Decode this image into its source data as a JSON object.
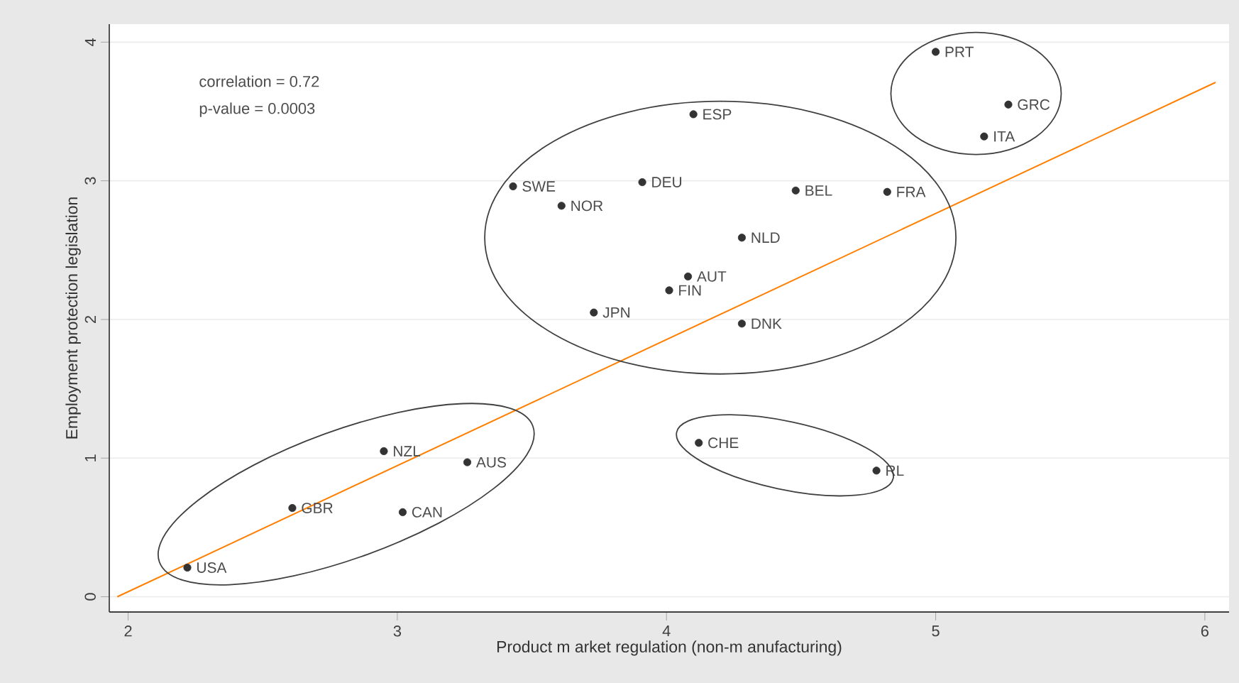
{
  "chart_data": {
    "type": "scatter",
    "xlabel": "Product m arket regulation (non-m anufacturing)",
    "ylabel": "Employment protection legislation",
    "xlim": [
      1.93,
      6.09
    ],
    "ylim": [
      -0.11,
      4.13
    ],
    "xticks": [
      2,
      3,
      4,
      5,
      6
    ],
    "yticks": [
      0,
      1,
      2,
      3,
      4
    ],
    "grid": "y",
    "marker": "circle",
    "series": [
      {
        "color": "#333333",
        "x": [
          5.0,
          5.27,
          5.18,
          4.1,
          3.43,
          3.91,
          4.48,
          4.82,
          3.61,
          4.28,
          4.08,
          4.01,
          3.73,
          4.28,
          4.12,
          4.78,
          2.95,
          3.26,
          2.61,
          3.02,
          2.22
        ],
        "values": [
          3.93,
          3.55,
          3.32,
          3.48,
          2.96,
          2.99,
          2.93,
          2.92,
          2.82,
          2.59,
          2.31,
          2.21,
          2.05,
          1.97,
          1.11,
          0.91,
          1.05,
          0.97,
          0.64,
          0.61,
          0.21
        ]
      },
      {
        "type": "line",
        "color": "#ff7f00",
        "marker": "none",
        "x": [
          1.96,
          6.04
        ],
        "values": [
          0,
          3.71
        ]
      }
    ],
    "annotations": [
      "correlation = 0.72",
      "p-value = 0.0003",
      {
        "text": "PRT",
        "x": 5.0,
        "y": 3.93
      },
      {
        "text": "GRC",
        "x": 5.27,
        "y": 3.55
      },
      {
        "text": "ITA",
        "x": 5.18,
        "y": 3.32
      },
      {
        "text": "ESP",
        "x": 4.1,
        "y": 3.48
      },
      {
        "text": "SWE",
        "x": 3.43,
        "y": 2.96
      },
      {
        "text": "DEU",
        "x": 3.91,
        "y": 2.99
      },
      {
        "text": "BEL",
        "x": 4.48,
        "y": 2.93
      },
      {
        "text": "FRA",
        "x": 4.82,
        "y": 2.92
      },
      {
        "text": "NOR",
        "x": 3.61,
        "y": 2.82
      },
      {
        "text": "NLD",
        "x": 4.28,
        "y": 2.59
      },
      {
        "text": "AUT",
        "x": 4.08,
        "y": 2.31
      },
      {
        "text": "FIN",
        "x": 4.01,
        "y": 2.21
      },
      {
        "text": "JPN",
        "x": 3.73,
        "y": 2.05
      },
      {
        "text": "DNK",
        "x": 4.28,
        "y": 1.97
      },
      {
        "text": "CHE",
        "x": 4.12,
        "y": 1.11
      },
      {
        "text": "RL",
        "x": 4.78,
        "y": 0.91
      },
      {
        "text": "NZL",
        "x": 2.95,
        "y": 1.05
      },
      {
        "text": "AUS",
        "x": 3.26,
        "y": 0.97
      },
      {
        "text": "GBR",
        "x": 2.61,
        "y": 0.64
      },
      {
        "text": "CAN",
        "x": 3.02,
        "y": 0.61
      },
      {
        "text": "USA",
        "x": 2.22,
        "y": 0.21
      }
    ]
  }
}
